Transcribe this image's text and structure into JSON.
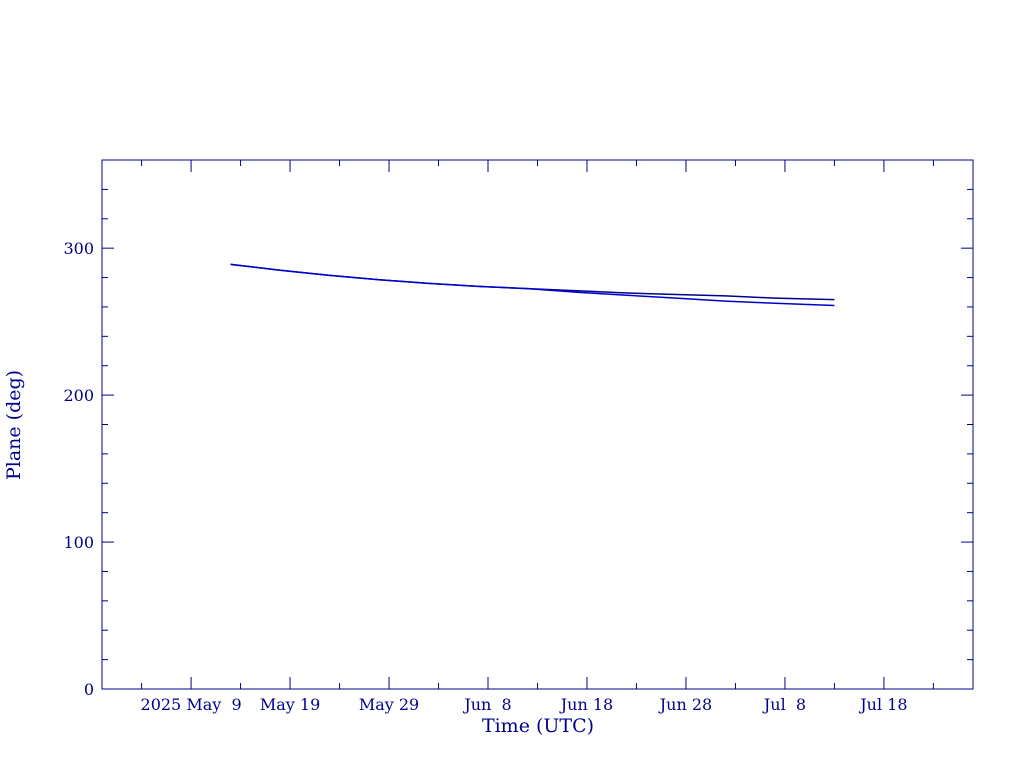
{
  "chart_data": {
    "type": "line",
    "xlabel": "Time (UTC)",
    "ylabel": "Plane (deg)",
    "x": [
      "2025-05-13",
      "2025-05-18",
      "2025-05-23",
      "2025-05-28",
      "2025-06-02",
      "2025-06-07",
      "2025-06-12",
      "2025-06-17",
      "2025-06-22",
      "2025-06-27",
      "2025-07-02",
      "2025-07-07",
      "2025-07-13"
    ],
    "series": [
      {
        "color": "#00008b",
        "values": [
          289,
          285,
          281.5,
          278.5,
          276,
          274,
          272.5,
          271,
          269.5,
          268.5,
          267.5,
          266,
          265
        ]
      },
      {
        "color": "#0000cd",
        "values": [
          289,
          285,
          281.5,
          278.5,
          276,
          274,
          272.5,
          270,
          268,
          266,
          264,
          262.5,
          261
        ]
      }
    ],
    "xlim": [
      "2025-04-30",
      "2025-07-27"
    ],
    "xticks": [
      {
        "value": "2025-05-09",
        "label": "2025 May  9"
      },
      {
        "value": "2025-05-19",
        "label": "May 19"
      },
      {
        "value": "2025-05-29",
        "label": "May 29"
      },
      {
        "value": "2025-06-08",
        "label": "Jun  8"
      },
      {
        "value": "2025-06-18",
        "label": "Jun 18"
      },
      {
        "value": "2025-06-28",
        "label": "Jun 28"
      },
      {
        "value": "2025-07-08",
        "label": "Jul  8"
      },
      {
        "value": "2025-07-18",
        "label": "Jul 18"
      }
    ],
    "xminorticks": [
      "2025-05-04",
      "2025-05-14",
      "2025-05-24",
      "2025-06-03",
      "2025-06-13",
      "2025-06-23",
      "2025-07-03",
      "2025-07-13",
      "2025-07-23"
    ],
    "ylim": [
      0,
      360
    ],
    "yticks": [
      0,
      100,
      200,
      300
    ],
    "yminorticks": [
      20,
      40,
      60,
      80,
      120,
      140,
      160,
      180,
      220,
      240,
      260,
      280,
      320,
      340
    ]
  }
}
